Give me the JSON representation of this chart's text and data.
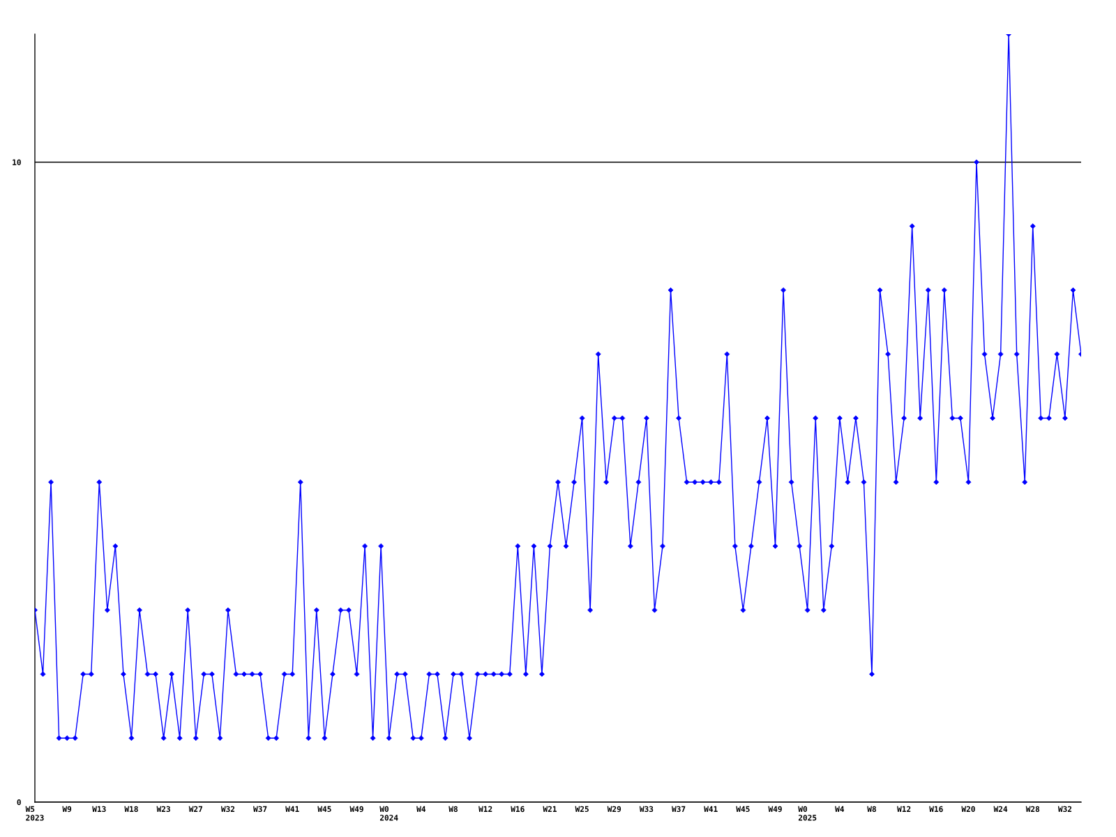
{
  "chart_data": {
    "type": "line",
    "categories": [
      "W5\n2023",
      null,
      null,
      null,
      "W9",
      null,
      null,
      null,
      "W13",
      null,
      null,
      null,
      "W18",
      null,
      null,
      null,
      "W23",
      null,
      null,
      null,
      "W27",
      null,
      null,
      null,
      "W32",
      null,
      null,
      null,
      "W37",
      null,
      null,
      null,
      "W41",
      null,
      null,
      null,
      "W45",
      null,
      null,
      null,
      "W49",
      null,
      null,
      null,
      "W0\n2024",
      null,
      null,
      null,
      "W4",
      null,
      null,
      null,
      "W8",
      null,
      null,
      null,
      "W12",
      null,
      null,
      null,
      "W16",
      null,
      null,
      null,
      "W21",
      null,
      null,
      null,
      "W25",
      null,
      null,
      null,
      "W29",
      null,
      null,
      null,
      "W33",
      null,
      null,
      null,
      "W37",
      null,
      null,
      null,
      "W41",
      null,
      null,
      null,
      "W45",
      null,
      null,
      null,
      "W49",
      null,
      null,
      null,
      "W0\n2025",
      null,
      null,
      null,
      "W4",
      null,
      null,
      null,
      "W8",
      null,
      null,
      null,
      "W12",
      null,
      null,
      null,
      "W16",
      null,
      null,
      null,
      "W20",
      null,
      null,
      null,
      "W24",
      null,
      null,
      null,
      "W28",
      null,
      null,
      null,
      "W32",
      null,
      null
    ],
    "series": [
      {
        "color": "#0000ff",
        "values": [
          3,
          2,
          5,
          1,
          1,
          1,
          2,
          2,
          5,
          3,
          4,
          2,
          1,
          3,
          2,
          2,
          1,
          2,
          1,
          3,
          1,
          2,
          2,
          1,
          3,
          2,
          2,
          2,
          2,
          1,
          1,
          2,
          2,
          5,
          1,
          3,
          1,
          2,
          3,
          3,
          2,
          4,
          1,
          4,
          1,
          2,
          2,
          1,
          1,
          2,
          2,
          1,
          2,
          2,
          1,
          2,
          2,
          2,
          2,
          2,
          4,
          2,
          4,
          2,
          4,
          5,
          4,
          5,
          6,
          3,
          7,
          5,
          6,
          6,
          4,
          5,
          6,
          3,
          4,
          8,
          6,
          5,
          5,
          5,
          5,
          5,
          7,
          4,
          3,
          4,
          5,
          6,
          4,
          8,
          5,
          4,
          3,
          6,
          3,
          4,
          6,
          5,
          6,
          5,
          2,
          8,
          7,
          5,
          6,
          9,
          6,
          8,
          5,
          8,
          6,
          6,
          5,
          10,
          7,
          6,
          7,
          12,
          7,
          5,
          9,
          6,
          6,
          7,
          6,
          8,
          7
        ]
      }
    ],
    "ylim": [
      0,
      12
    ],
    "yticks": [
      0,
      10
    ],
    "grid": "y",
    "marker": "diamond",
    "line_style": "solid"
  }
}
